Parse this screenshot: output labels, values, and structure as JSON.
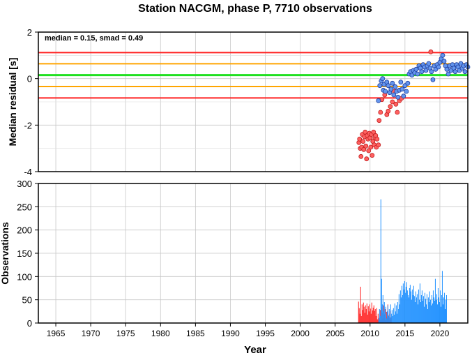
{
  "title": "Station NACGM, phase P, 7710 observations",
  "xlabel": "Year",
  "colors": {
    "red": "#ff2020",
    "orange": "#ffa500",
    "green": "#20e020",
    "blue_bar": "#1e90ff",
    "red_point": "#ff6060",
    "blue_point": "#6495ed"
  },
  "chart_data": [
    {
      "type": "scatter",
      "ylabel": "Median residual [s]",
      "annotation": "median = 0.15, smad = 0.49",
      "xlim": [
        1962.5,
        2024
      ],
      "ylim": [
        -4,
        2
      ],
      "y_ticks": [
        -4,
        -2,
        0,
        2
      ],
      "grid": true,
      "reference_lines": [
        {
          "y": 1.12,
          "color": "red"
        },
        {
          "y": 0.64,
          "color": "orange"
        },
        {
          "y": 0.15,
          "color": "green"
        },
        {
          "y": -0.34,
          "color": "orange"
        },
        {
          "y": -0.83,
          "color": "red"
        }
      ],
      "series": [
        {
          "color": "red",
          "points": [
            [
              2008.4,
              -2.75
            ],
            [
              2008.5,
              -2.6
            ],
            [
              2008.6,
              -3.0
            ],
            [
              2008.7,
              -3.35
            ],
            [
              2008.8,
              -2.95
            ],
            [
              2008.9,
              -2.4
            ],
            [
              2009.0,
              -2.7
            ],
            [
              2009.1,
              -3.05
            ],
            [
              2009.2,
              -2.5
            ],
            [
              2009.3,
              -2.3
            ],
            [
              2009.4,
              -2.9
            ],
            [
              2009.5,
              -3.45
            ],
            [
              2009.6,
              -2.45
            ],
            [
              2009.7,
              -2.6
            ],
            [
              2009.8,
              -3.1
            ],
            [
              2009.9,
              -2.35
            ],
            [
              2010.0,
              -2.55
            ],
            [
              2010.1,
              -2.95
            ],
            [
              2010.2,
              -2.4
            ],
            [
              2010.3,
              -3.3
            ],
            [
              2010.4,
              -2.7
            ],
            [
              2010.5,
              -2.3
            ],
            [
              2010.6,
              -2.85
            ],
            [
              2010.7,
              -2.55
            ],
            [
              2010.8,
              -2.45
            ],
            [
              2010.9,
              -2.95
            ],
            [
              2011.0,
              -2.6
            ],
            [
              2011.2,
              -2.85
            ],
            [
              2011.3,
              -1.8
            ],
            [
              2011.5,
              -1.45
            ],
            [
              2011.7,
              -0.9
            ],
            [
              2012.1,
              -0.7
            ],
            [
              2012.4,
              -1.55
            ],
            [
              2012.6,
              -1.4
            ],
            [
              2012.9,
              -1.2
            ],
            [
              2013.2,
              -1.0
            ],
            [
              2013.5,
              -0.55
            ],
            [
              2013.7,
              -1.1
            ],
            [
              2013.9,
              -1.45
            ],
            [
              2014.2,
              -0.95
            ],
            [
              2014.5,
              -0.85
            ],
            [
              2018.7,
              1.15
            ]
          ]
        },
        {
          "color": "blue",
          "points": [
            [
              2011.2,
              -0.95
            ],
            [
              2011.4,
              -0.3
            ],
            [
              2011.6,
              -0.1
            ],
            [
              2011.8,
              0.0
            ],
            [
              2011.9,
              -0.5
            ],
            [
              2012.0,
              -0.25
            ],
            [
              2012.2,
              -0.55
            ],
            [
              2012.4,
              -0.15
            ],
            [
              2012.6,
              -0.3
            ],
            [
              2012.8,
              -0.6
            ],
            [
              2013.0,
              -0.45
            ],
            [
              2013.2,
              -0.2
            ],
            [
              2013.4,
              -0.7
            ],
            [
              2013.6,
              -0.35
            ],
            [
              2013.8,
              -0.55
            ],
            [
              2014.0,
              -0.8
            ],
            [
              2014.2,
              -0.5
            ],
            [
              2014.4,
              -0.15
            ],
            [
              2014.6,
              -0.45
            ],
            [
              2014.8,
              -0.75
            ],
            [
              2015.0,
              -0.3
            ],
            [
              2015.2,
              -0.55
            ],
            [
              2015.4,
              -0.2
            ],
            [
              2015.6,
              0.2
            ],
            [
              2015.8,
              0.3
            ],
            [
              2016.0,
              0.15
            ],
            [
              2016.2,
              0.35
            ],
            [
              2016.4,
              0.25
            ],
            [
              2016.6,
              0.4
            ],
            [
              2016.8,
              0.2
            ],
            [
              2017.0,
              0.55
            ],
            [
              2017.2,
              0.45
            ],
            [
              2017.4,
              0.3
            ],
            [
              2017.6,
              0.6
            ],
            [
              2017.8,
              0.5
            ],
            [
              2018.0,
              0.35
            ],
            [
              2018.2,
              0.55
            ],
            [
              2018.4,
              0.65
            ],
            [
              2018.6,
              0.45
            ],
            [
              2018.8,
              0.3
            ],
            [
              2019.0,
              -0.05
            ],
            [
              2019.2,
              0.55
            ],
            [
              2019.4,
              0.4
            ],
            [
              2019.6,
              0.6
            ],
            [
              2019.8,
              0.5
            ],
            [
              2020.0,
              0.7
            ],
            [
              2020.2,
              0.85
            ],
            [
              2020.4,
              1.0
            ],
            [
              2020.6,
              0.75
            ],
            [
              2020.8,
              0.55
            ],
            [
              2021.0,
              0.4
            ],
            [
              2021.2,
              0.2
            ],
            [
              2021.4,
              0.55
            ],
            [
              2021.6,
              0.35
            ],
            [
              2021.8,
              0.6
            ],
            [
              2022.0,
              0.45
            ],
            [
              2022.2,
              0.3
            ],
            [
              2022.4,
              0.6
            ],
            [
              2022.6,
              0.5
            ],
            [
              2022.8,
              0.35
            ],
            [
              2023.0,
              0.65
            ],
            [
              2023.2,
              0.45
            ],
            [
              2023.4,
              0.55
            ],
            [
              2023.6,
              0.3
            ],
            [
              2023.8,
              0.6
            ],
            [
              2024.0,
              0.5
            ]
          ]
        }
      ]
    },
    {
      "type": "bar",
      "ylabel": "Observations",
      "xlim": [
        1962.5,
        2024
      ],
      "ylim": [
        0,
        300
      ],
      "y_ticks": [
        0,
        50,
        100,
        150,
        200,
        250,
        300
      ],
      "x_ticks": [
        1965,
        1970,
        1975,
        1980,
        1985,
        1990,
        1995,
        2000,
        2005,
        2010,
        2015,
        2020
      ],
      "grid": true,
      "series": [
        {
          "color": "red",
          "x_start": 2008.3,
          "dx": 0.1,
          "values": [
            46,
            32,
            20,
            78,
            15,
            40,
            28,
            44,
            35,
            22,
            38,
            30,
            42,
            18,
            36,
            25,
            40,
            31,
            20,
            44,
            27,
            33,
            38,
            26,
            30,
            15,
            32,
            8,
            20,
            5,
            12,
            28,
            6,
            34,
            22,
            10,
            38,
            18,
            30,
            6,
            24,
            12,
            40,
            16,
            20,
            8,
            26,
            12
          ]
        },
        {
          "color": "blue",
          "x_start": 2011.2,
          "dx": 0.1,
          "values": [
            10,
            30,
            15,
            266,
            95,
            40,
            60,
            25,
            45,
            20,
            35,
            10,
            25,
            38,
            15,
            30,
            12,
            40,
            20,
            28,
            15,
            32,
            18,
            42,
            25,
            38,
            20,
            45,
            30,
            62,
            40,
            70,
            55,
            80,
            60,
            85,
            72,
            90,
            65,
            78,
            88,
            70,
            60,
            55,
            75,
            82,
            68,
            50,
            72,
            60,
            80,
            58,
            45,
            68,
            55,
            62,
            40,
            72,
            50,
            85,
            45,
            60,
            70,
            48,
            58,
            35,
            65,
            52,
            40,
            62,
            30,
            55,
            45,
            68,
            50,
            38,
            60,
            42,
            70,
            55,
            48,
            95,
            50,
            62,
            40,
            75,
            55,
            45,
            70,
            35,
            60,
            112,
            40,
            55,
            65,
            30,
            50,
            60
          ]
        }
      ]
    }
  ]
}
